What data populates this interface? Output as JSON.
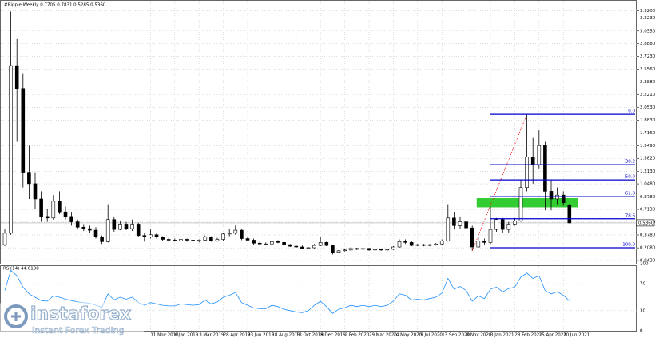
{
  "chart_data": {
    "type": "candlestick",
    "title": "#Ripple,Weekly 0.7705 0.7831 0.5285 0.5360",
    "categories": [
      null,
      null,
      null,
      null,
      null,
      null,
      null,
      null,
      null,
      null,
      null,
      null,
      null,
      null,
      null,
      null,
      null,
      null,
      null,
      null,
      null,
      null,
      null,
      null,
      "11 Nov 2018",
      null,
      null,
      null,
      "6 Jan 2019",
      null,
      null,
      null,
      "3 Mar 2019",
      null,
      null,
      null,
      "28 Apr 2019",
      null,
      null,
      null,
      "23 Jun 2019",
      null,
      null,
      null,
      "18 Aug 2019",
      null,
      null,
      null,
      "13 Oct 2019",
      null,
      null,
      null,
      "8 Dec 2019",
      null,
      null,
      null,
      "2 Feb 2020",
      null,
      null,
      null,
      "29 Mar 2020",
      null,
      null,
      null,
      "24 May 2020",
      null,
      null,
      null,
      "19 Jul 2020",
      null,
      null,
      null,
      "13 Sep 2020",
      null,
      null,
      null,
      "8 Nov 2020",
      null,
      null,
      null,
      "3 Jan 2021",
      null,
      null,
      null,
      "28 Feb 2021",
      null,
      null,
      null,
      "25 Apr 2021",
      null,
      null,
      null,
      "20 Jun 2021",
      null
    ],
    "open": [
      0.25,
      0.4,
      2.6,
      2.3,
      1.2,
      1.05,
      0.85,
      0.62,
      0.6,
      0.82,
      0.68,
      0.62,
      0.55,
      0.48,
      0.46,
      0.44,
      0.35,
      0.29,
      0.58,
      0.45,
      0.52,
      0.46,
      0.52,
      0.37,
      0.35,
      0.38,
      0.35,
      0.32,
      0.31,
      0.3,
      0.32,
      0.31,
      0.3,
      0.31,
      0.35,
      0.3,
      0.32,
      0.39,
      0.4,
      0.44,
      0.33,
      0.31,
      0.27,
      0.26,
      0.26,
      0.29,
      0.28,
      0.25,
      0.23,
      0.22,
      0.2,
      0.21,
      0.24,
      0.28,
      0.24,
      0.15,
      0.17,
      0.18,
      0.2,
      0.19,
      0.2,
      0.18,
      0.19,
      0.18,
      0.19,
      0.22,
      0.29,
      0.28,
      0.24,
      0.25,
      0.24,
      0.25,
      0.26,
      0.3,
      0.6,
      0.5,
      0.55,
      0.47,
      0.22,
      0.3,
      0.28,
      0.45,
      0.58,
      0.45,
      0.52,
      0.56,
      1.0,
      1.4,
      1.3,
      1.55,
      0.95,
      0.85,
      0.9,
      0.7705
    ],
    "high": [
      0.45,
      3.31,
      2.95,
      2.5,
      1.55,
      1.2,
      0.95,
      0.72,
      0.9,
      0.95,
      0.75,
      0.68,
      0.58,
      0.52,
      0.5,
      0.48,
      0.37,
      0.78,
      0.62,
      0.56,
      0.55,
      0.58,
      0.54,
      0.4,
      0.45,
      0.4,
      0.36,
      0.34,
      0.33,
      0.34,
      0.33,
      0.32,
      0.32,
      0.37,
      0.36,
      0.34,
      0.4,
      0.46,
      0.5,
      0.45,
      0.35,
      0.33,
      0.29,
      0.28,
      0.3,
      0.31,
      0.3,
      0.26,
      0.24,
      0.24,
      0.22,
      0.26,
      0.35,
      0.29,
      0.25,
      0.18,
      0.19,
      0.22,
      0.21,
      0.21,
      0.21,
      0.2,
      0.2,
      0.2,
      0.23,
      0.32,
      0.32,
      0.3,
      0.26,
      0.26,
      0.26,
      0.27,
      0.32,
      0.78,
      0.68,
      0.62,
      0.64,
      0.5,
      0.35,
      0.33,
      0.75,
      0.6,
      0.6,
      0.55,
      0.6,
      1.1,
      1.96,
      1.65,
      1.75,
      1.6,
      1.1,
      1.0,
      0.95,
      0.7831
    ],
    "low": [
      0.23,
      0.38,
      1.6,
      1.0,
      0.85,
      0.72,
      0.55,
      0.55,
      0.58,
      0.65,
      0.58,
      0.5,
      0.45,
      0.43,
      0.4,
      0.33,
      0.26,
      0.28,
      0.42,
      0.44,
      0.44,
      0.43,
      0.35,
      0.29,
      0.33,
      0.33,
      0.3,
      0.29,
      0.29,
      0.29,
      0.29,
      0.29,
      0.28,
      0.3,
      0.29,
      0.29,
      0.3,
      0.36,
      0.38,
      0.31,
      0.3,
      0.25,
      0.25,
      0.24,
      0.24,
      0.27,
      0.24,
      0.22,
      0.21,
      0.19,
      0.19,
      0.2,
      0.23,
      0.23,
      0.12,
      0.14,
      0.16,
      0.17,
      0.18,
      0.18,
      0.17,
      0.17,
      0.17,
      0.17,
      0.18,
      0.21,
      0.26,
      0.23,
      0.23,
      0.23,
      0.23,
      0.24,
      0.25,
      0.29,
      0.45,
      0.46,
      0.4,
      0.17,
      0.21,
      0.25,
      0.26,
      0.42,
      0.4,
      0.41,
      0.5,
      0.55,
      0.95,
      1.05,
      1.25,
      0.7,
      0.7,
      0.78,
      0.76,
      0.5285
    ],
    "close": [
      0.4,
      2.6,
      2.3,
      1.2,
      1.05,
      0.85,
      0.62,
      0.6,
      0.82,
      0.68,
      0.62,
      0.55,
      0.48,
      0.46,
      0.44,
      0.35,
      0.29,
      0.58,
      0.45,
      0.52,
      0.46,
      0.52,
      0.37,
      0.35,
      0.38,
      0.35,
      0.32,
      0.31,
      0.3,
      0.32,
      0.31,
      0.3,
      0.31,
      0.35,
      0.3,
      0.32,
      0.39,
      0.4,
      0.44,
      0.33,
      0.31,
      0.27,
      0.26,
      0.26,
      0.29,
      0.28,
      0.25,
      0.23,
      0.22,
      0.2,
      0.21,
      0.24,
      0.28,
      0.24,
      0.15,
      0.17,
      0.18,
      0.2,
      0.19,
      0.2,
      0.18,
      0.19,
      0.18,
      0.19,
      0.22,
      0.29,
      0.28,
      0.24,
      0.25,
      0.24,
      0.25,
      0.26,
      0.3,
      0.6,
      0.5,
      0.55,
      0.47,
      0.22,
      0.3,
      0.28,
      0.45,
      0.58,
      0.45,
      0.52,
      0.56,
      1.0,
      1.4,
      1.3,
      1.55,
      0.95,
      0.85,
      0.9,
      0.8,
      0.536
    ],
    "last_label": "0.5360",
    "ylim": [
      0,
      3.43
    ],
    "yticks": [
      {
        "value": 3.32,
        "label": "3.3200"
      },
      {
        "value": 3.223,
        "label": "3.2230"
      },
      {
        "value": 3.055,
        "label": "3.0550"
      },
      {
        "value": 2.888,
        "label": "2.8880"
      },
      {
        "value": 2.723,
        "label": "2.7230"
      },
      {
        "value": 2.556,
        "label": "2.5560"
      },
      {
        "value": 2.388,
        "label": "2.3880"
      },
      {
        "value": 2.221,
        "label": "2.2210"
      },
      {
        "value": 2.053,
        "label": "2.0530"
      },
      {
        "value": 1.883,
        "label": "1.8830"
      },
      {
        "value": 1.716,
        "label": "1.7160"
      },
      {
        "value": 1.549,
        "label": "1.5490"
      },
      {
        "value": 1.382,
        "label": "1.3820"
      },
      {
        "value": 1.213,
        "label": "1.2130"
      },
      {
        "value": 1.048,
        "label": "1.0480"
      },
      {
        "value": 0.878,
        "label": "0.8780"
      },
      {
        "value": 0.713,
        "label": "0.7130"
      },
      {
        "value": 0.546,
        "label": "0.5460"
      },
      {
        "value": 0.378,
        "label": "0.3780"
      },
      {
        "value": 0.208,
        "label": "0.2080"
      },
      {
        "value": 0.043,
        "label": "0.0430"
      }
    ],
    "grid": true,
    "bull_color": "#ffffff",
    "bear_color": "#000000",
    "fib_color": "#0000cc",
    "fib_levels": [
      {
        "label": "0.0",
        "value": 1.96
      },
      {
        "label": "38.2",
        "value": 1.3
      },
      {
        "label": "50.0",
        "value": 1.1
      },
      {
        "label": "61.8",
        "value": 0.88
      },
      {
        "label": "78.6",
        "value": 0.59
      },
      {
        "label": "100.0",
        "value": 0.21
      }
    ],
    "zone": [
      0.74,
      0.86
    ],
    "zone_color": "#33cc33",
    "rsi": {
      "label": "RSI(14) 44.6198",
      "color": "#1e90ff",
      "ylim": [
        0,
        100
      ],
      "yticks": [
        0,
        30,
        70,
        100
      ],
      "values": [
        60,
        90,
        82,
        65,
        55,
        50,
        45,
        44,
        52,
        50,
        47,
        45,
        43,
        42,
        41,
        38,
        35,
        55,
        46,
        50,
        47,
        50,
        42,
        38,
        42,
        40,
        38,
        37,
        37,
        40,
        39,
        38,
        39,
        46,
        40,
        43,
        50,
        53,
        57,
        42,
        38,
        34,
        33,
        33,
        38,
        36,
        32,
        30,
        28,
        27,
        30,
        38,
        44,
        36,
        26,
        32,
        34,
        38,
        36,
        38,
        36,
        38,
        36,
        38,
        44,
        55,
        53,
        46,
        47,
        46,
        48,
        50,
        56,
        78,
        62,
        66,
        60,
        44,
        52,
        48,
        62,
        65,
        58,
        63,
        65,
        80,
        86,
        78,
        82,
        60,
        55,
        58,
        53,
        44.6198
      ]
    }
  },
  "watermark": {
    "name": "instaforex",
    "tagline": "Instant Forex Trading"
  }
}
